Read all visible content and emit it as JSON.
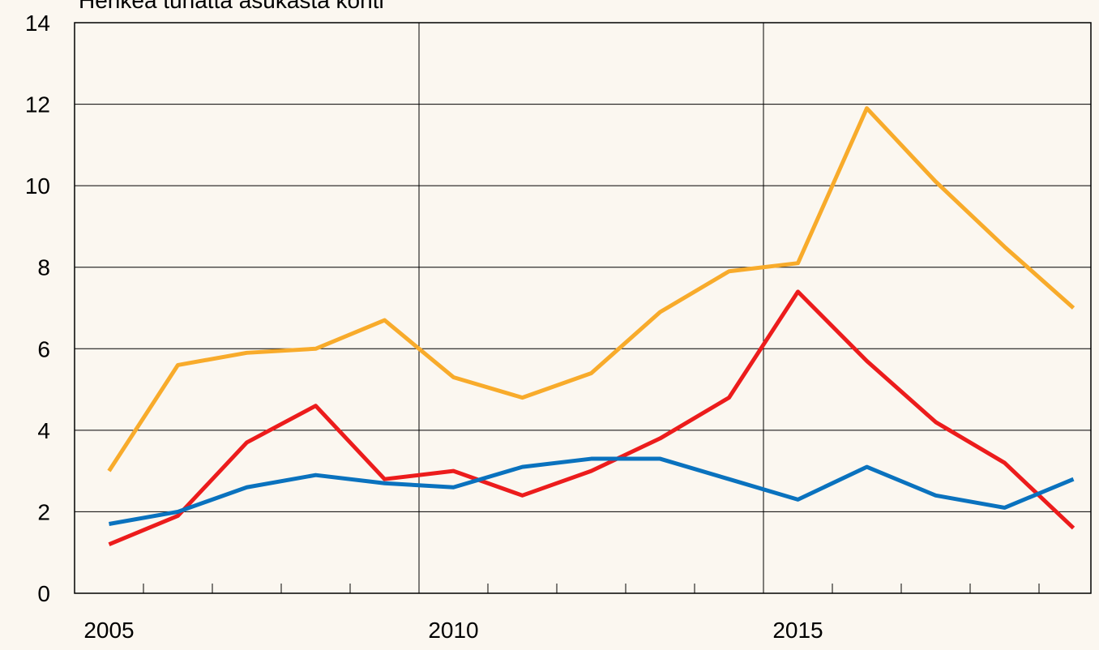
{
  "chart_data": {
    "type": "line",
    "y_label": "Henkeä tuhatta asukasta kohti",
    "categories": [
      "2005",
      null,
      null,
      null,
      null,
      "2010",
      null,
      null,
      null,
      null,
      "2015",
      null,
      null,
      null,
      null
    ],
    "series": [
      {
        "color": "#f8ab2b",
        "values": [
          3.0,
          5.6,
          5.9,
          6.0,
          6.7,
          5.3,
          4.8,
          5.4,
          6.9,
          7.9,
          8.1,
          11.9,
          10.1,
          8.5,
          7.0
        ]
      },
      {
        "color": "#ec1c1c",
        "values": [
          1.2,
          1.9,
          3.7,
          4.6,
          2.8,
          3.0,
          2.4,
          3.0,
          3.8,
          4.8,
          7.4,
          5.7,
          4.2,
          3.2,
          1.6
        ]
      },
      {
        "color": "#0a72be",
        "values": [
          1.7,
          2.0,
          2.6,
          2.9,
          2.7,
          2.6,
          3.1,
          3.3,
          3.3,
          2.8,
          2.3,
          3.1,
          2.4,
          2.1,
          2.8
        ]
      }
    ],
    "ylim": [
      0,
      14
    ],
    "yticks": [
      0,
      2,
      4,
      6,
      8,
      10,
      12,
      14
    ],
    "grid": true
  }
}
